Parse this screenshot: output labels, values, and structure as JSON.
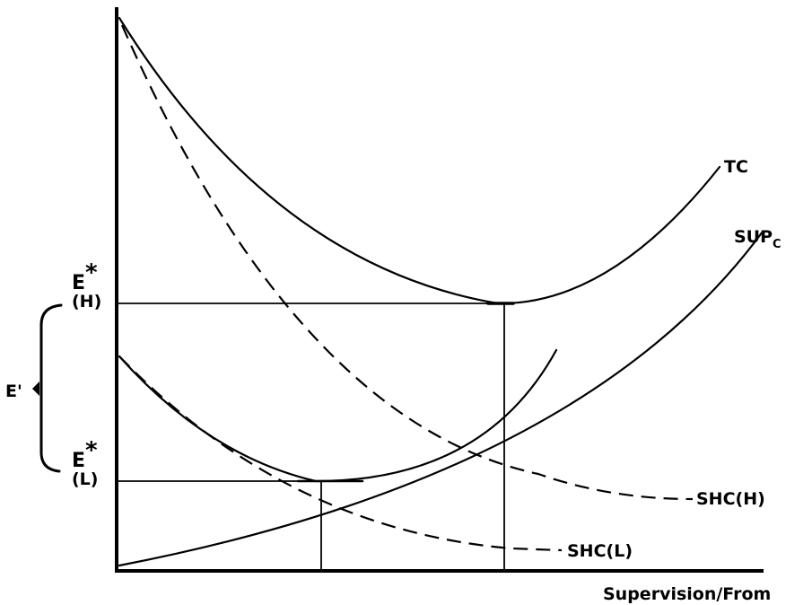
{
  "curves": {
    "tc": "TC",
    "sup": "SUP",
    "sup_sub": "C",
    "shc_h": "SHC(H)",
    "shc_l": "SHC(L)"
  },
  "levels": {
    "e_h_main": "E",
    "e_h_star": "*",
    "e_h_sub": "(H)",
    "e_l_main": "E",
    "e_l_star": "*",
    "e_l_sub": "(L)",
    "e_prime": "E'"
  },
  "axes": {
    "xlabel": "Supervision/From"
  }
}
